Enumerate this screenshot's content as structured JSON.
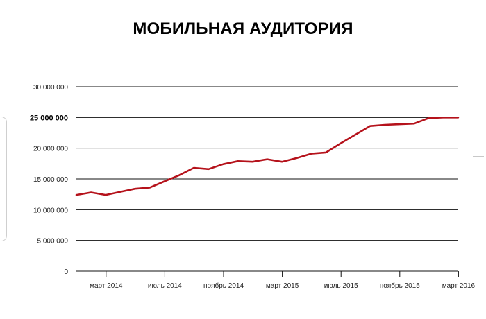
{
  "chart_data": {
    "type": "line",
    "title": "МОБИЛЬНАЯ АУДИТОРИЯ",
    "xlabel": "",
    "ylabel": "",
    "ylim": [
      0,
      30000000
    ],
    "yticks": [
      0,
      5000000,
      10000000,
      15000000,
      20000000,
      25000000,
      30000000
    ],
    "ytick_labels": [
      "0",
      "5 000 000",
      "10 000 000",
      "15 000 000",
      "20 000 000",
      "25 000 000",
      "30 000 000"
    ],
    "highlighted_tick": "25 000 000",
    "x": [
      "2014-01",
      "2014-02",
      "2014-03",
      "2014-04",
      "2014-05",
      "2014-06",
      "2014-07",
      "2014-08",
      "2014-09",
      "2014-10",
      "2014-11",
      "2014-12",
      "2015-01",
      "2015-02",
      "2015-03",
      "2015-04",
      "2015-05",
      "2015-06",
      "2015-07",
      "2015-08",
      "2015-09",
      "2015-10",
      "2015-11",
      "2015-12",
      "2016-01",
      "2016-02",
      "2016-03"
    ],
    "xtick_positions": [
      "2014-03",
      "2014-07",
      "2014-11",
      "2015-03",
      "2015-07",
      "2015-11",
      "2016-03"
    ],
    "xtick_labels": [
      "март 2014",
      "июль 2014",
      "ноябрь 2014",
      "март 2015",
      "июль 2015",
      "ноябрь 2015",
      "март 2016"
    ],
    "series": [
      {
        "values": [
          12400000,
          12800000,
          12400000,
          12900000,
          13400000,
          13600000,
          14600000,
          15600000,
          16800000,
          16600000,
          17400000,
          17900000,
          17800000,
          18200000,
          17800000,
          18400000,
          19100000,
          19300000,
          20800000,
          22200000,
          23600000,
          23800000,
          23900000,
          24000000,
          24900000,
          25000000,
          25000000
        ],
        "color": "#b5121b"
      }
    ],
    "grid": true,
    "legend": "none"
  }
}
